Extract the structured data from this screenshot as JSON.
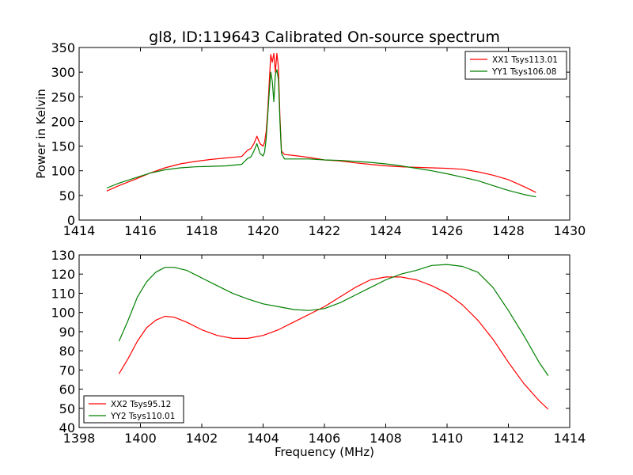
{
  "title": "gl8, ID:119643 Calibrated On-source spectrum",
  "chart_data": [
    {
      "type": "line",
      "ylabel": "Power in Kelvin",
      "xlabel": "",
      "xlim": [
        1414,
        1430
      ],
      "ylim": [
        0,
        350
      ],
      "xticks": [
        1414,
        1416,
        1418,
        1420,
        1422,
        1424,
        1426,
        1428,
        1430
      ],
      "yticks": [
        0,
        50,
        100,
        150,
        200,
        250,
        300,
        350
      ],
      "legend_position": "top-right",
      "series": [
        {
          "name": "XX1 Tsys113.01",
          "color": "#ff0000",
          "x": [
            1414.9,
            1415.3,
            1415.8,
            1416.3,
            1416.8,
            1417.3,
            1417.8,
            1418.3,
            1418.8,
            1419.3,
            1419.5,
            1419.6,
            1419.7,
            1419.8,
            1419.9,
            1420.0,
            1420.05,
            1420.1,
            1420.15,
            1420.2,
            1420.25,
            1420.3,
            1420.35,
            1420.4,
            1420.45,
            1420.5,
            1420.55,
            1420.6,
            1420.7,
            1421.0,
            1421.5,
            1422.0,
            1422.5,
            1423.0,
            1423.5,
            1424.0,
            1424.5,
            1425.0,
            1425.5,
            1426.0,
            1426.5,
            1427.0,
            1427.5,
            1428.0,
            1428.5,
            1428.9
          ],
          "values": [
            59,
            70,
            82,
            95,
            106,
            114,
            119,
            123,
            126,
            129,
            142,
            145,
            155,
            170,
            155,
            150,
            158,
            180,
            220,
            280,
            336,
            320,
            338,
            300,
            338,
            310,
            210,
            140,
            133,
            131,
            127,
            122,
            120,
            116,
            113,
            110,
            108,
            107,
            106,
            105,
            103,
            98,
            91,
            82,
            68,
            56
          ]
        },
        {
          "name": "YY1 Tsys106.08",
          "color": "#008000",
          "x": [
            1414.9,
            1415.3,
            1415.8,
            1416.3,
            1416.8,
            1417.3,
            1417.8,
            1418.3,
            1418.8,
            1419.3,
            1419.5,
            1419.6,
            1419.7,
            1419.8,
            1419.9,
            1420.0,
            1420.05,
            1420.1,
            1420.15,
            1420.2,
            1420.25,
            1420.3,
            1420.35,
            1420.4,
            1420.45,
            1420.5,
            1420.55,
            1420.6,
            1420.7,
            1421.0,
            1421.5,
            1422.0,
            1422.5,
            1423.0,
            1423.5,
            1424.0,
            1424.5,
            1425.0,
            1425.5,
            1426.0,
            1426.5,
            1427.0,
            1427.5,
            1428.0,
            1428.5,
            1428.9
          ],
          "values": [
            65,
            75,
            85,
            95,
            102,
            106,
            108,
            109,
            110,
            113,
            125,
            128,
            140,
            155,
            135,
            130,
            138,
            165,
            210,
            260,
            300,
            282,
            240,
            295,
            305,
            285,
            200,
            135,
            124,
            124,
            124,
            122,
            121,
            119,
            117,
            114,
            110,
            105,
            100,
            94,
            87,
            80,
            70,
            60,
            52,
            47
          ]
        }
      ]
    },
    {
      "type": "line",
      "xlabel": "Frequency (MHz)",
      "ylabel": "",
      "xlim": [
        1398,
        1414
      ],
      "ylim": [
        40,
        130
      ],
      "xticks": [
        1398,
        1400,
        1402,
        1404,
        1406,
        1408,
        1410,
        1412,
        1414
      ],
      "yticks": [
        40,
        50,
        60,
        70,
        80,
        90,
        100,
        110,
        120,
        130
      ],
      "legend_position": "bottom-left",
      "series": [
        {
          "name": "XX2 Tsys95.12",
          "color": "#ff0000",
          "x": [
            1399.3,
            1399.6,
            1399.9,
            1400.2,
            1400.5,
            1400.8,
            1401.1,
            1401.5,
            1402.0,
            1402.5,
            1403.0,
            1403.5,
            1404.0,
            1404.5,
            1405.0,
            1405.5,
            1406.0,
            1406.5,
            1407.0,
            1407.5,
            1408.0,
            1408.5,
            1409.0,
            1409.5,
            1410.0,
            1410.5,
            1411.0,
            1411.5,
            1412.0,
            1412.5,
            1413.0,
            1413.3
          ],
          "values": [
            68,
            76,
            85,
            92,
            96,
            98,
            97.5,
            95,
            91,
            88,
            86.5,
            86.5,
            88,
            91,
            95,
            99,
            103,
            108,
            113,
            117,
            118.5,
            118.5,
            117,
            114,
            110,
            104,
            96,
            86,
            74,
            63,
            54,
            49.5
          ]
        },
        {
          "name": "YY2 Tsys110.01",
          "color": "#008000",
          "x": [
            1399.3,
            1399.6,
            1399.9,
            1400.2,
            1400.5,
            1400.8,
            1401.1,
            1401.5,
            1402.0,
            1402.5,
            1403.0,
            1403.5,
            1404.0,
            1404.5,
            1405.0,
            1405.5,
            1406.0,
            1406.5,
            1407.0,
            1407.5,
            1408.0,
            1408.5,
            1409.0,
            1409.5,
            1410.0,
            1410.5,
            1411.0,
            1411.5,
            1412.0,
            1412.5,
            1413.0,
            1413.3
          ],
          "values": [
            85,
            96,
            108,
            116,
            121,
            123.5,
            123.5,
            122,
            118,
            114,
            110,
            107,
            104.5,
            103,
            101.5,
            101,
            102,
            105,
            109,
            113,
            117,
            120,
            122,
            124.5,
            125,
            124,
            121,
            113,
            101,
            88,
            74,
            67
          ]
        }
      ]
    }
  ]
}
